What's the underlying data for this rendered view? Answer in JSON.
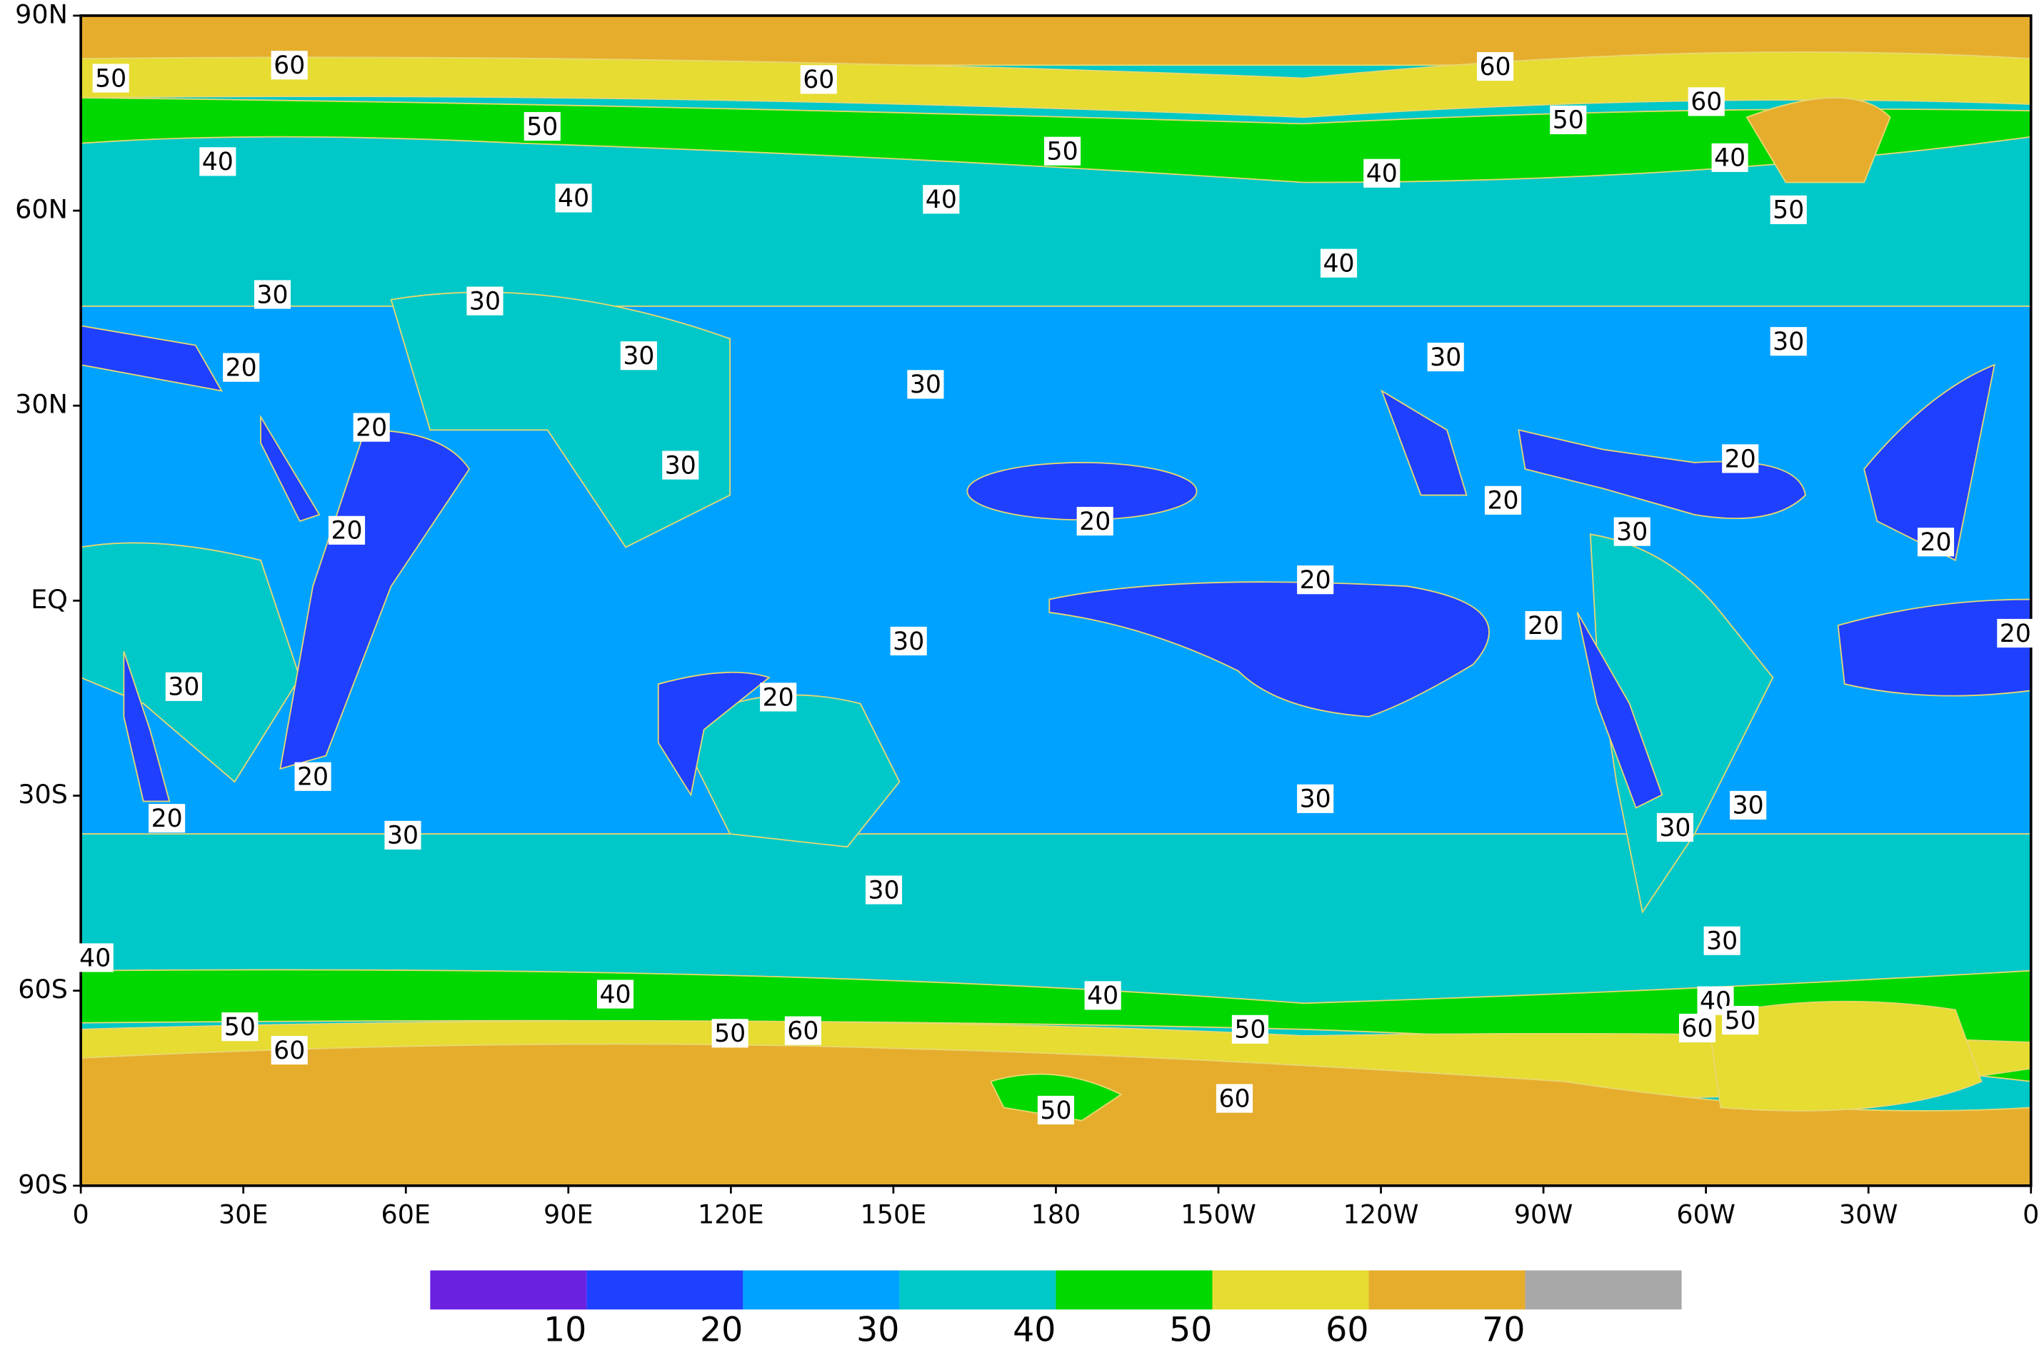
{
  "chart_data": {
    "type": "contour-map",
    "xlim": [
      0,
      360
    ],
    "ylim": [
      -90,
      90
    ],
    "xticks": [
      {
        "value": 0,
        "label": "0"
      },
      {
        "value": 30,
        "label": "30E"
      },
      {
        "value": 60,
        "label": "60E"
      },
      {
        "value": 90,
        "label": "90E"
      },
      {
        "value": 120,
        "label": "120E"
      },
      {
        "value": 150,
        "label": "150E"
      },
      180,
      {
        "value": 210,
        "label": "150W"
      },
      {
        "value": 240,
        "label": "120W"
      },
      {
        "value": 270,
        "label": "90W"
      },
      {
        "value": 300,
        "label": "60W"
      },
      {
        "value": 330,
        "label": "30W"
      },
      {
        "value": 360,
        "label": "0"
      }
    ],
    "yticks": [
      {
        "value": 90,
        "label": "90N"
      },
      {
        "value": 60,
        "label": "60N"
      },
      {
        "value": 30,
        "label": "30N"
      },
      {
        "value": 0,
        "label": "EQ"
      },
      {
        "value": -30,
        "label": "30S"
      },
      {
        "value": -60,
        "label": "60S"
      },
      {
        "value": -90,
        "label": "90S"
      }
    ],
    "contour_labels": [
      "50",
      "60",
      "60",
      "50",
      "40",
      "40",
      "50",
      "40",
      "60",
      "60",
      "50",
      "40",
      "40",
      "50",
      "40",
      "30",
      "30",
      "30",
      "20",
      "30",
      "30",
      "30",
      "20",
      "30",
      "20",
      "20",
      "20",
      "20",
      "30",
      "20",
      "20",
      "20",
      "20",
      "30",
      "30",
      "20",
      "20",
      "20",
      "30",
      "30",
      "30",
      "30",
      "30",
      "30",
      "40",
      "40",
      "40",
      "40",
      "50",
      "60",
      "50",
      "50",
      "60",
      "50",
      "60",
      "60",
      "50"
    ],
    "colorbar": {
      "levels": [
        10,
        20,
        30,
        40,
        50,
        60,
        70
      ],
      "colors": [
        "#6a22e0",
        "#2040ff",
        "#00a2ff",
        "#00c8c8",
        "#00d800",
        "#e6dc32",
        "#e6ad2d",
        "#a8a8a8"
      ]
    }
  }
}
